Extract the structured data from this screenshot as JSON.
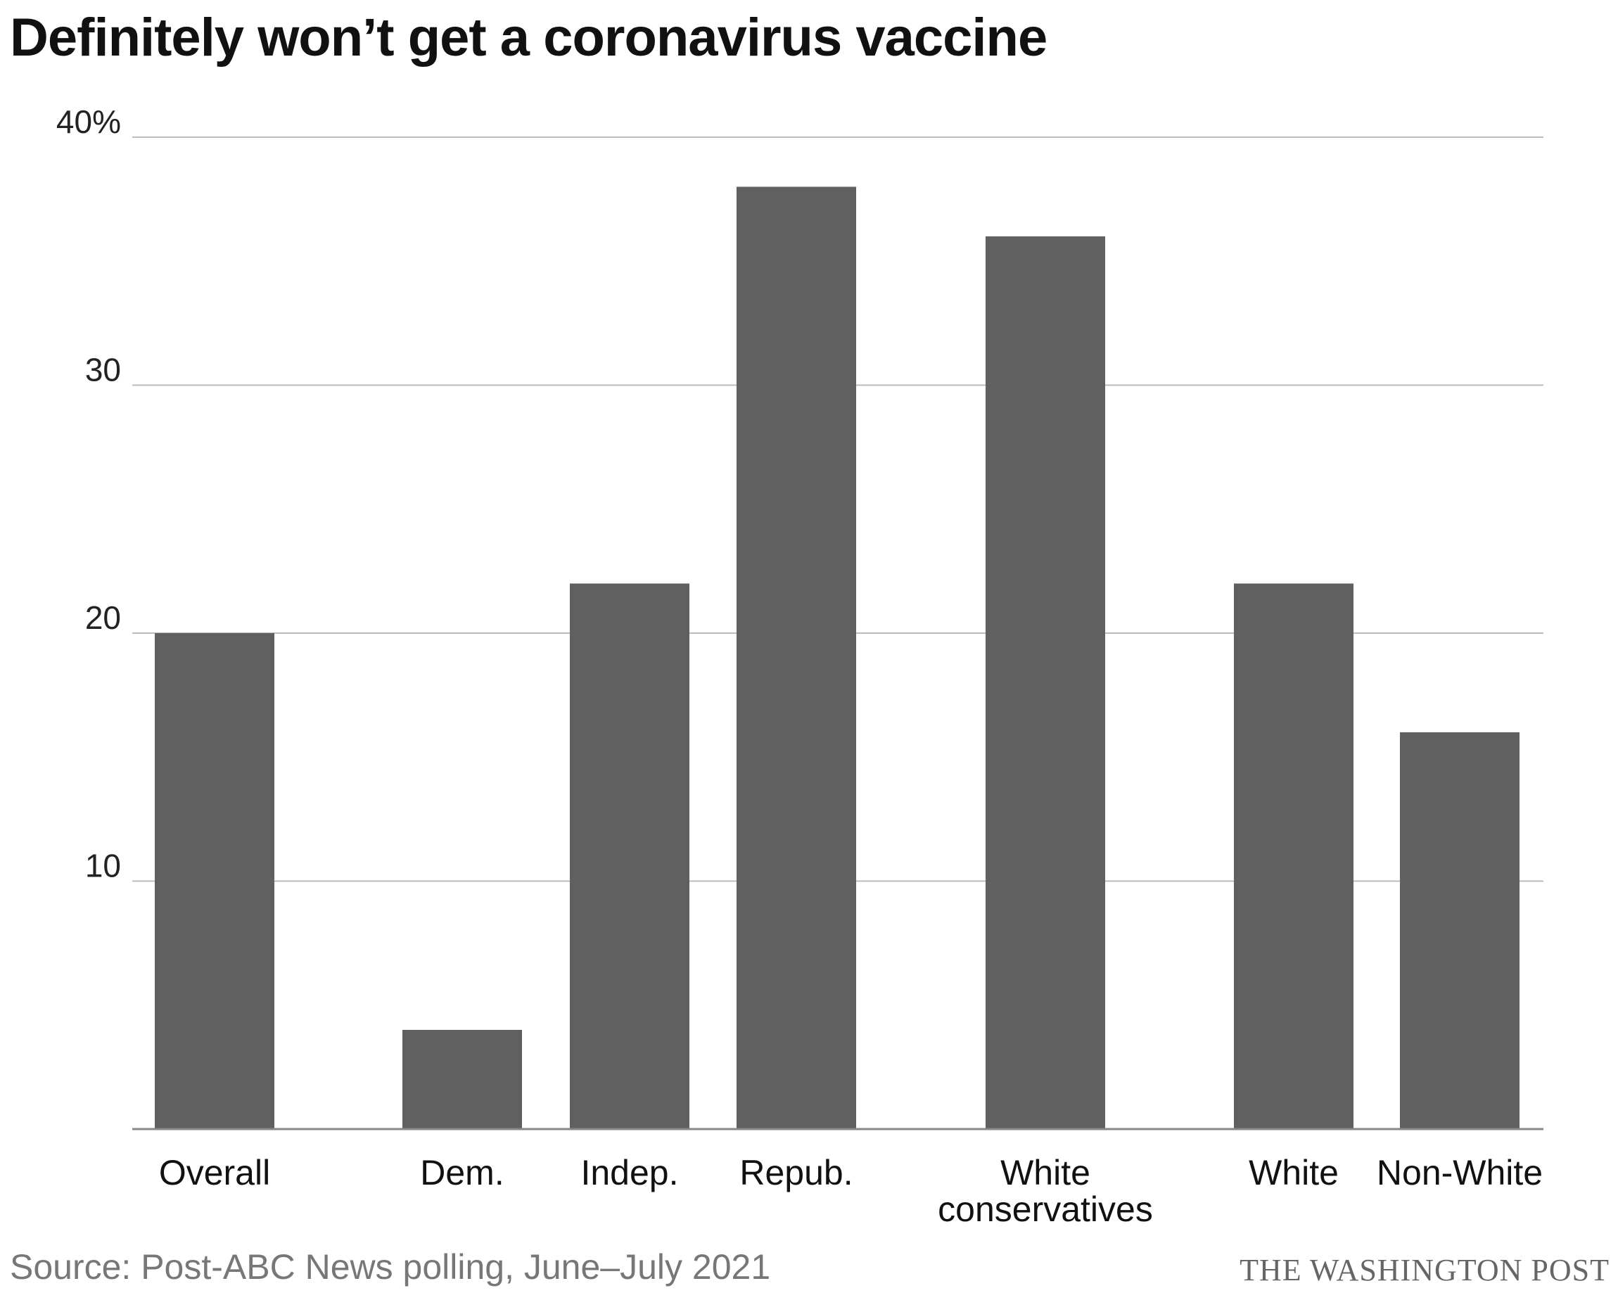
{
  "chart_data": {
    "type": "bar",
    "title": "Definitely won’t get a coronavirus vaccine",
    "categories": [
      "Overall",
      "Dem.",
      "Indep.",
      "Repub.",
      "White conservatives",
      "White",
      "Non-White"
    ],
    "category_labels": [
      [
        "Overall"
      ],
      [
        "Dem."
      ],
      [
        "Indep."
      ],
      [
        "Repub."
      ],
      [
        "White",
        "conservatives"
      ],
      [
        "White"
      ],
      [
        "Non-White"
      ]
    ],
    "values": [
      20,
      4,
      22,
      38,
      36,
      22,
      16
    ],
    "groups": [
      [
        0
      ],
      [
        1,
        2,
        3
      ],
      [
        4
      ],
      [
        5,
        6
      ]
    ],
    "xlabel": "",
    "ylabel": "",
    "ylim": [
      0,
      40
    ],
    "yticks": [
      10,
      20,
      30,
      40
    ],
    "ytick_labels": [
      "10",
      "20",
      "30",
      "40%"
    ],
    "grid": true,
    "bar_color": "#606060",
    "grid_color": "#bbbbbb",
    "axis_color": "#888888"
  },
  "footer": {
    "source": "Source: Post-ABC News polling, June–July 2021",
    "credit": "THE WASHINGTON POST"
  }
}
